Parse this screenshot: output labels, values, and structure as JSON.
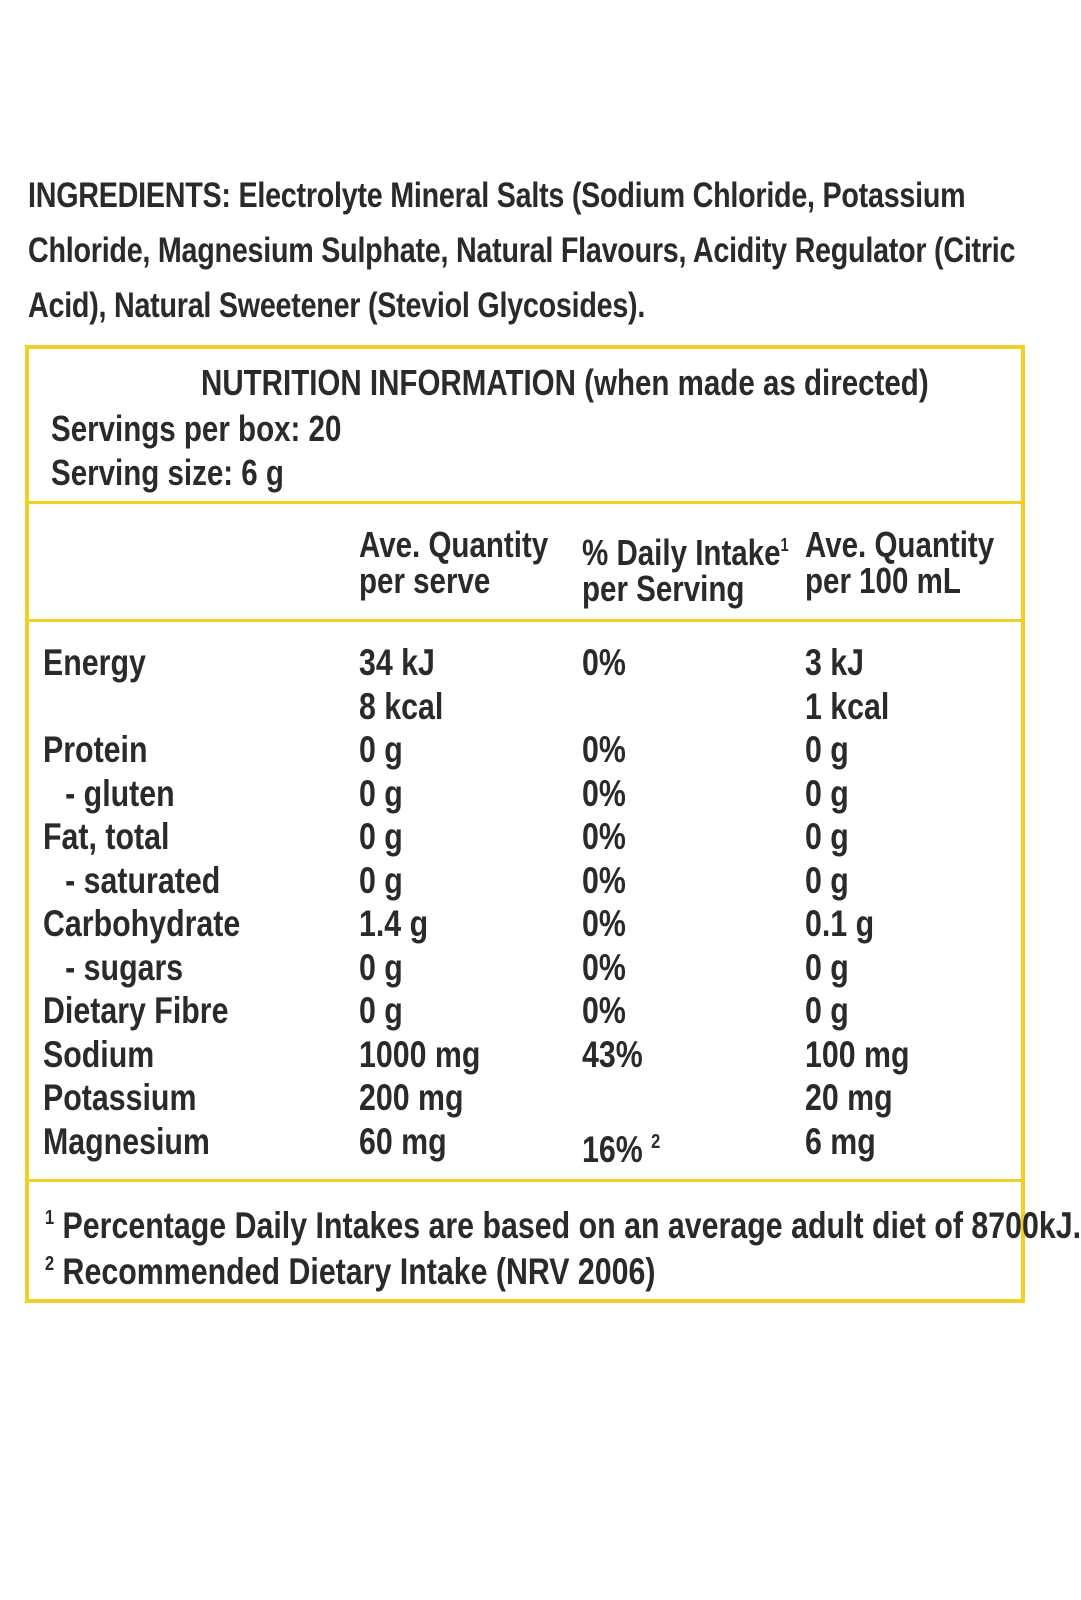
{
  "ingredients": "INGREDIENTS: Electrolyte Mineral Salts (Sodium Chloride, Potassium Chloride, Magnesium Sulphate, Natural Flavours, Acidity Regulator (Citric Acid), Natural Sweetener (Steviol Glycosides).",
  "panel": {
    "title": "NUTRITION INFORMATION (when made as directed)",
    "servings_per_box": "Servings per box: 20",
    "serving_size": "Serving size: 6 g",
    "headers": {
      "col1_line1": "Ave. Quantity",
      "col1_line2": "per serve",
      "col2_line1": "% Daily Intake",
      "col2_sup": "1",
      "col2_line2": "per Serving",
      "col3_line1": "Ave. Quantity",
      "col3_line2": "per 100 mL"
    },
    "rows": [
      {
        "name": "Energy",
        "serve": "34 kJ",
        "di": "0%",
        "per100": "3 kJ"
      },
      {
        "name": "",
        "serve": "8 kcal",
        "di": "",
        "per100": "1 kcal"
      },
      {
        "name": "Protein",
        "serve": "0 g",
        "di": "0%",
        "per100": "0 g"
      },
      {
        "name": "- gluten",
        "serve": "0 g",
        "di": "0%",
        "per100": "0 g"
      },
      {
        "name": "Fat, total",
        "serve": "0 g",
        "di": "0%",
        "per100": "0 g"
      },
      {
        "name": "- saturated",
        "serve": "0 g",
        "di": "0%",
        "per100": "0 g"
      },
      {
        "name": "Carbohydrate",
        "serve": "1.4 g",
        "di": "0%",
        "per100": "0.1 g"
      },
      {
        "name": "- sugars",
        "serve": "0 g",
        "di": "0%",
        "per100": "0 g"
      },
      {
        "name": "Dietary Fibre",
        "serve": "0 g",
        "di": "0%",
        "per100": "0 g"
      },
      {
        "name": "Sodium",
        "serve": "1000 mg",
        "di": "43%",
        "per100": "100 mg"
      },
      {
        "name": "Potassium",
        "serve": "200 mg",
        "di": "",
        "per100": "20 mg"
      },
      {
        "name": "Magnesium",
        "serve": "60 mg",
        "di": "16%",
        "di_sup": "2",
        "per100": "6 mg"
      }
    ],
    "footnotes": [
      {
        "mark": "1",
        "text": "Percentage Daily Intakes are based on an average adult diet of 8700kJ."
      },
      {
        "mark": "2",
        "text": "Recommended Dietary Intake (NRV 2006)"
      }
    ],
    "border_color": "#f3cf22"
  }
}
